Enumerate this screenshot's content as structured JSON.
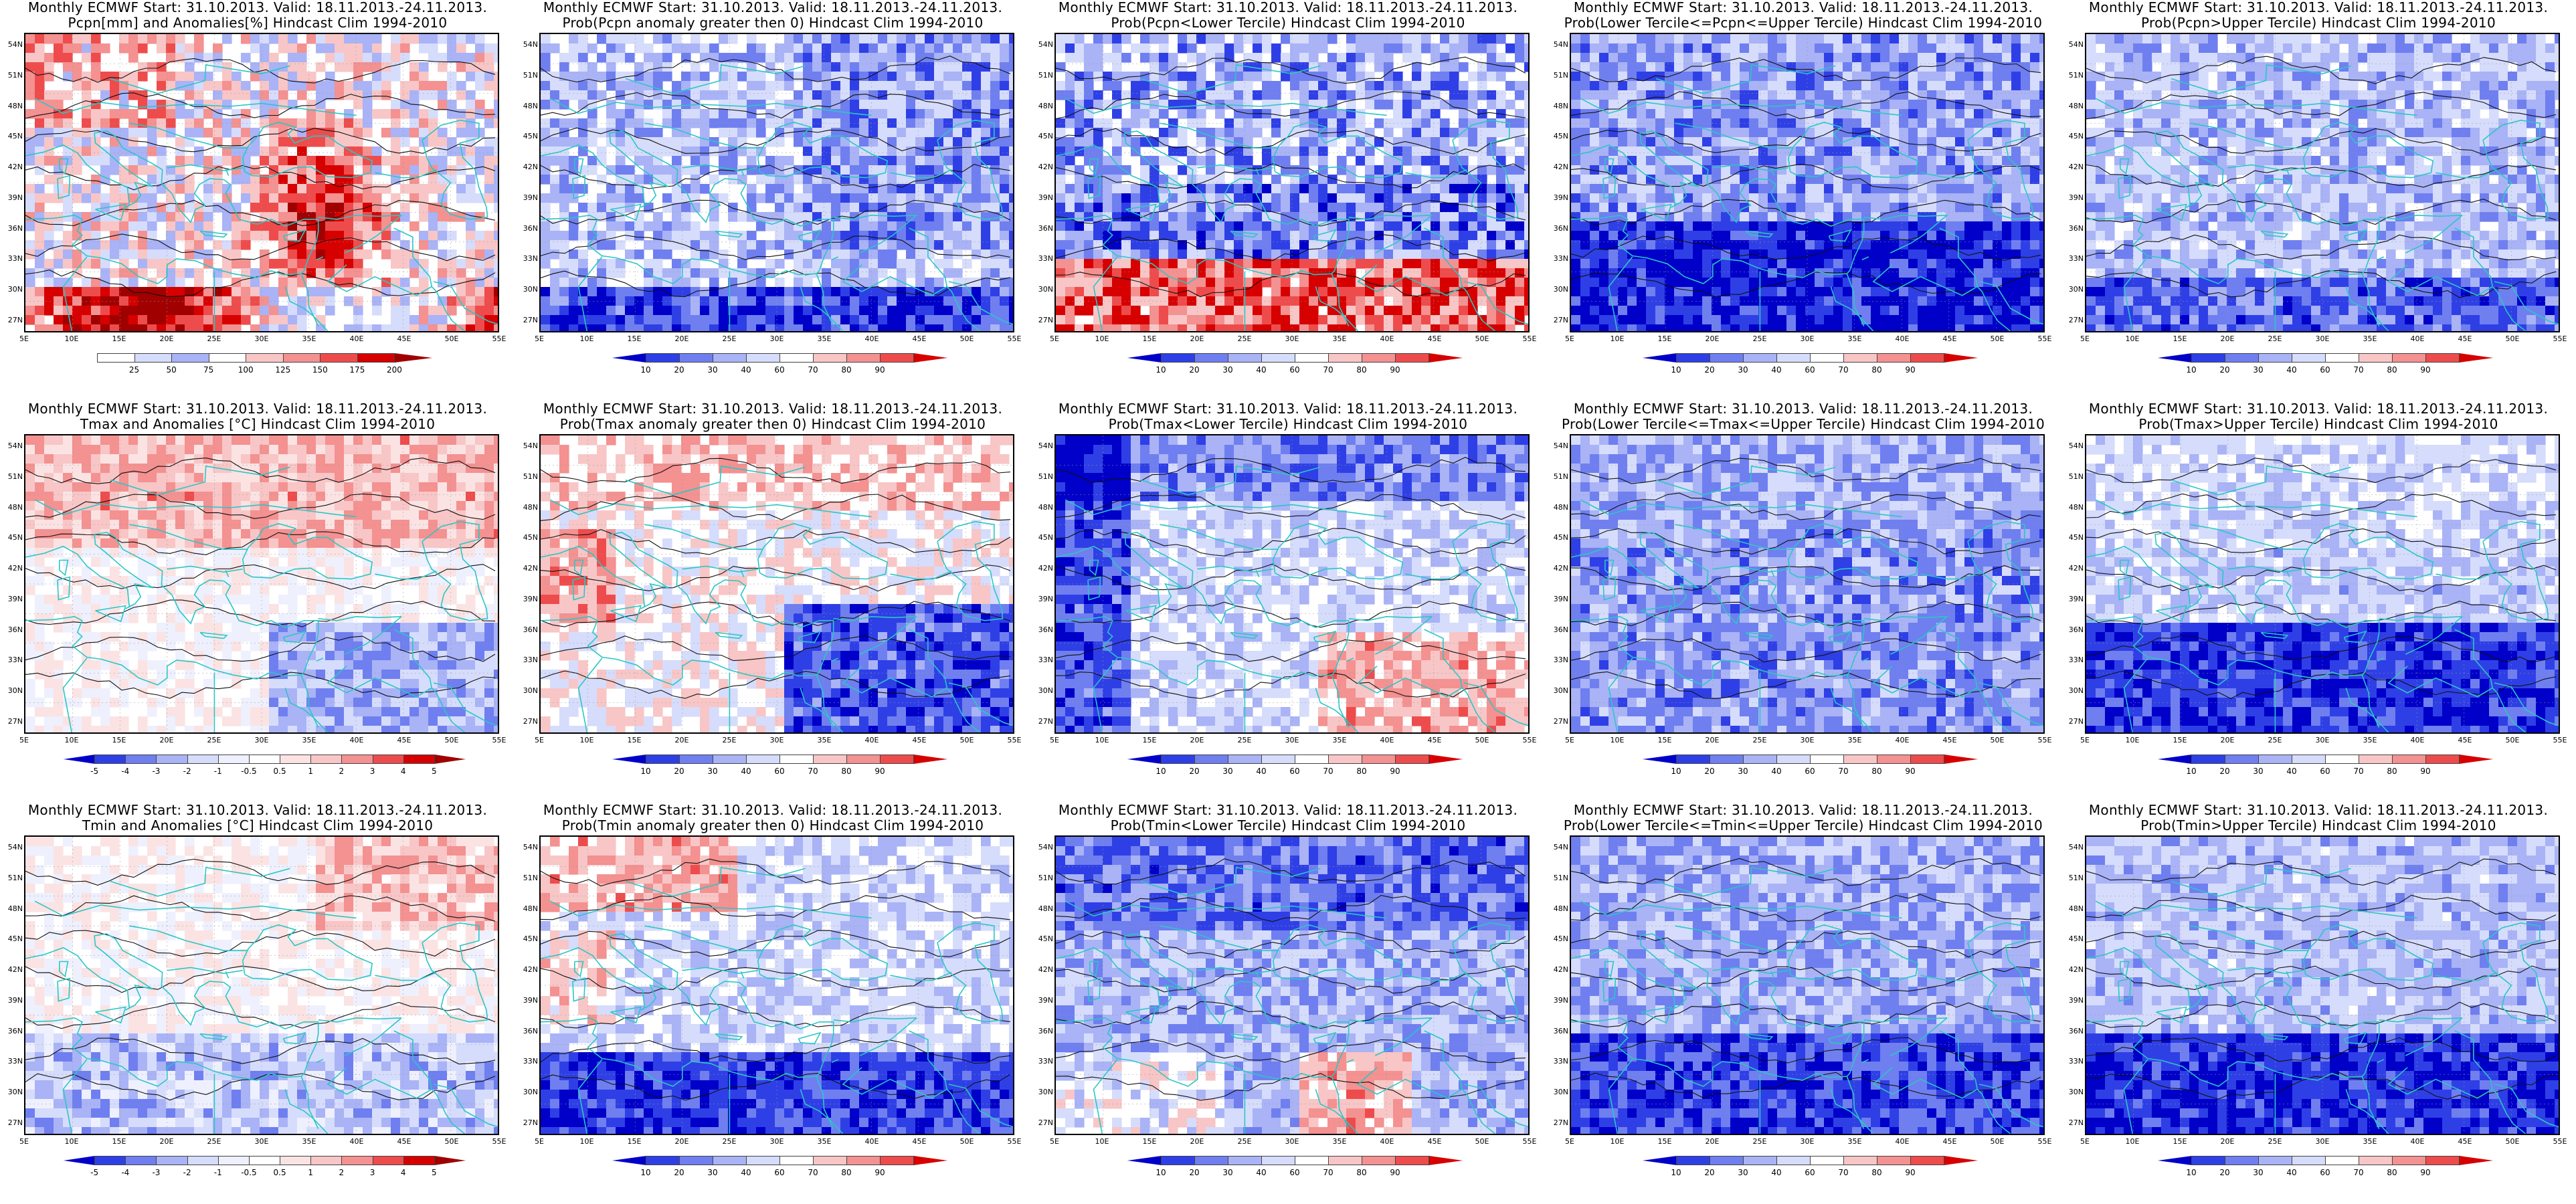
{
  "panels": [
    {
      "id": "r1c1",
      "title1": "Monthly ECMWF Start: 31.10.2013. Valid: 18.11.2013.-24.11.2013.",
      "title2": "Pcpn[mm] and Anomalies[%] Hindcast Clim 1994-2010",
      "scale": "anom_pcpn",
      "ticks": [
        "25",
        "50",
        "75",
        "100",
        "125",
        "150",
        "175",
        "200"
      ],
      "pattern": "pcpn_anom"
    },
    {
      "id": "r1c2",
      "title1": "Monthly ECMWF Start: 31.10.2013. Valid: 18.11.2013.-24.11.2013.",
      "title2": "Prob(Pcpn anomaly greater then 0) Hindcast Clim 1994-2010",
      "scale": "prob",
      "ticks": [
        "10",
        "20",
        "30",
        "40",
        "60",
        "70",
        "80",
        "90"
      ],
      "pattern": "pcpn_pos"
    },
    {
      "id": "r1c3",
      "title1": "Monthly ECMWF Start: 31.10.2013. Valid: 18.11.2013.-24.11.2013.",
      "title2": "Prob(Pcpn<Lower Tercile) Hindcast Clim 1994-2010",
      "scale": "prob",
      "ticks": [
        "10",
        "20",
        "30",
        "40",
        "60",
        "70",
        "80",
        "90"
      ],
      "pattern": "pcpn_low"
    },
    {
      "id": "r1c4",
      "title1": "Monthly ECMWF Start: 31.10.2013. Valid: 18.11.2013.-24.11.2013.",
      "title2": "Prob(Lower Tercile<=Pcpn<=Upper Tercile) Hindcast Clim 1994-2010",
      "scale": "prob",
      "ticks": [
        "10",
        "20",
        "30",
        "40",
        "60",
        "70",
        "80",
        "90"
      ],
      "pattern": "pcpn_mid"
    },
    {
      "id": "r1c5",
      "title1": "Monthly ECMWF Start: 31.10.2013. Valid: 18.11.2013.-24.11.2013.",
      "title2": "Prob(Pcpn>Upper Tercile) Hindcast Clim 1994-2010",
      "scale": "prob",
      "ticks": [
        "10",
        "20",
        "30",
        "40",
        "60",
        "70",
        "80",
        "90"
      ],
      "pattern": "pcpn_up"
    },
    {
      "id": "r2c1",
      "title1": "Monthly ECMWF Start: 31.10.2013. Valid: 18.11.2013.-24.11.2013.",
      "title2": "Tmax and Anomalies [°C] Hindcast Clim 1994-2010",
      "scale": "anom_t",
      "ticks": [
        "-5",
        "-4",
        "-3",
        "-2",
        "-1",
        "-0.5",
        "0.5",
        "1",
        "2",
        "3",
        "4",
        "5"
      ],
      "pattern": "tmax_anom"
    },
    {
      "id": "r2c2",
      "title1": "Monthly ECMWF Start: 31.10.2013. Valid: 18.11.2013.-24.11.2013.",
      "title2": "Prob(Tmax anomaly greater then 0) Hindcast Clim 1994-2010",
      "scale": "prob",
      "ticks": [
        "10",
        "20",
        "30",
        "40",
        "60",
        "70",
        "80",
        "90"
      ],
      "pattern": "tmax_pos"
    },
    {
      "id": "r2c3",
      "title1": "Monthly ECMWF Start: 31.10.2013. Valid: 18.11.2013.-24.11.2013.",
      "title2": "Prob(Tmax<Lower Tercile) Hindcast Clim 1994-2010",
      "scale": "prob",
      "ticks": [
        "10",
        "20",
        "30",
        "40",
        "60",
        "70",
        "80",
        "90"
      ],
      "pattern": "tmax_low"
    },
    {
      "id": "r2c4",
      "title1": "Monthly ECMWF Start: 31.10.2013. Valid: 18.11.2013.-24.11.2013.",
      "title2": "Prob(Lower Tercile<=Tmax<=Upper Tercile) Hindcast Clim 1994-2010",
      "scale": "prob",
      "ticks": [
        "10",
        "20",
        "30",
        "40",
        "60",
        "70",
        "80",
        "90"
      ],
      "pattern": "tmax_mid"
    },
    {
      "id": "r2c5",
      "title1": "Monthly ECMWF Start: 31.10.2013. Valid: 18.11.2013.-24.11.2013.",
      "title2": "Prob(Tmax>Upper Tercile) Hindcast Clim 1994-2010",
      "scale": "prob",
      "ticks": [
        "10",
        "20",
        "30",
        "40",
        "60",
        "70",
        "80",
        "90"
      ],
      "pattern": "tmax_up"
    },
    {
      "id": "r3c1",
      "title1": "Monthly ECMWF Start: 31.10.2013. Valid: 18.11.2013.-24.11.2013.",
      "title2": "Tmin and Anomalies [°C] Hindcast Clim 1994-2010",
      "scale": "anom_t",
      "ticks": [
        "-5",
        "-4",
        "-3",
        "-2",
        "-1",
        "-0.5",
        "0.5",
        "1",
        "2",
        "3",
        "4",
        "5"
      ],
      "pattern": "tmin_anom"
    },
    {
      "id": "r3c2",
      "title1": "Monthly ECMWF Start: 31.10.2013. Valid: 18.11.2013.-24.11.2013.",
      "title2": "Prob(Tmin anomaly greater then 0) Hindcast Clim 1994-2010",
      "scale": "prob",
      "ticks": [
        "10",
        "20",
        "30",
        "40",
        "60",
        "70",
        "80",
        "90"
      ],
      "pattern": "tmin_pos"
    },
    {
      "id": "r3c3",
      "title1": "Monthly ECMWF Start: 31.10.2013. Valid: 18.11.2013.-24.11.2013.",
      "title2": "Prob(Tmin<Lower Tercile) Hindcast Clim 1994-2010",
      "scale": "prob",
      "ticks": [
        "10",
        "20",
        "30",
        "40",
        "60",
        "70",
        "80",
        "90"
      ],
      "pattern": "tmin_low"
    },
    {
      "id": "r3c4",
      "title1": "Monthly ECMWF Start: 31.10.2013. Valid: 18.11.2013.-24.11.2013.",
      "title2": "Prob(Lower Tercile<=Tmin<=Upper Tercile) Hindcast Clim 1994-2010",
      "scale": "prob",
      "ticks": [
        "10",
        "20",
        "30",
        "40",
        "60",
        "70",
        "80",
        "90"
      ],
      "pattern": "tmin_mid"
    },
    {
      "id": "r3c5",
      "title1": "Monthly ECMWF Start: 31.10.2013. Valid: 18.11.2013.-24.11.2013.",
      "title2": "Prob(Tmin>Upper Tercile) Hindcast Clim 1994-2010",
      "scale": "prob",
      "ticks": [
        "10",
        "20",
        "30",
        "40",
        "60",
        "70",
        "80",
        "90"
      ],
      "pattern": "tmin_up"
    }
  ],
  "lat_labels": [
    "54N",
    "51N",
    "48N",
    "45N",
    "42N",
    "39N",
    "36N",
    "33N",
    "30N",
    "27N"
  ],
  "lon_labels": [
    "5E",
    "10E",
    "15E",
    "20E",
    "25E",
    "30E",
    "35E",
    "40E",
    "45E",
    "50E",
    "55E"
  ],
  "colors": {
    "prob": [
      "#0000c8",
      "#2f3fe6",
      "#6f7ff0",
      "#a9b3f6",
      "#d6dcfb",
      "#ffffff",
      "#f8c6c6",
      "#f49191",
      "#ee4c4c",
      "#d60000"
    ],
    "anom_pcpn": [
      "#ffffff",
      "#d6dcfb",
      "#a9b3f6",
      "#ffffff",
      "#f8c6c6",
      "#f49191",
      "#ee4c4c",
      "#d60000",
      "#a00000"
    ],
    "anom_t": [
      "#0000c8",
      "#2f3fe6",
      "#6f7ff0",
      "#a9b3f6",
      "#d6dcfb",
      "#eef0fd",
      "#ffffff",
      "#fbe3e3",
      "#f8c6c6",
      "#f49191",
      "#ee4c4c",
      "#d60000",
      "#a00000"
    ],
    "coast": "#2bc6c6",
    "contour": "#111111"
  }
}
